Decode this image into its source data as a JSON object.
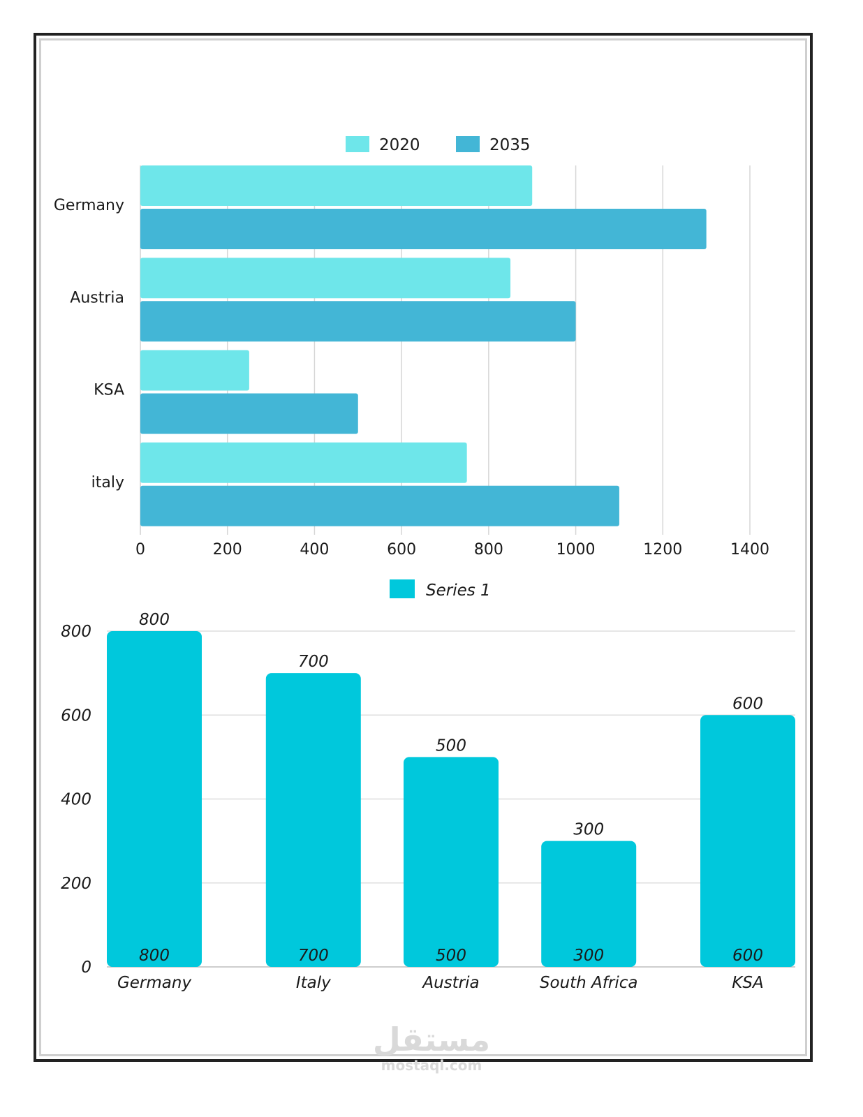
{
  "chart_data": [
    {
      "type": "bar",
      "orientation": "horizontal",
      "title": "",
      "categories": [
        "Germany",
        "Austria",
        "KSA",
        "italy"
      ],
      "series": [
        {
          "name": "2020",
          "values": [
            900,
            850,
            250,
            750
          ]
        },
        {
          "name": "2035",
          "values": [
            1300,
            1000,
            500,
            1100
          ]
        }
      ],
      "xlim": [
        0,
        1400
      ],
      "xticks": [
        "0",
        "200",
        "400",
        "600",
        "800",
        "1000",
        "1200",
        "1400"
      ],
      "grid": "vertical",
      "legend": "top-center",
      "colors": {
        "2020": "#6ee6ea",
        "2035": "#43b6d6"
      }
    },
    {
      "type": "bar",
      "orientation": "vertical",
      "title": "",
      "categories": [
        "Germany",
        "Italy",
        "Austria",
        "South Africa",
        "KSA"
      ],
      "series": [
        {
          "name": "Series 1",
          "values": [
            800,
            700,
            500,
            300,
            600
          ]
        }
      ],
      "ylim": [
        0,
        800
      ],
      "yticks": [
        "0",
        "200",
        "400",
        "600",
        "800"
      ],
      "top_labels": [
        "800",
        "700",
        "500",
        "300",
        "600"
      ],
      "inner_labels": [
        "800",
        "700",
        "500",
        "300",
        "600"
      ],
      "grid": "horizontal",
      "legend": "top-center",
      "colors": {
        "Series 1": "#00c8dc"
      }
    }
  ],
  "watermark": {
    "arabic": "مستقل",
    "latin": "mostaql.com"
  }
}
